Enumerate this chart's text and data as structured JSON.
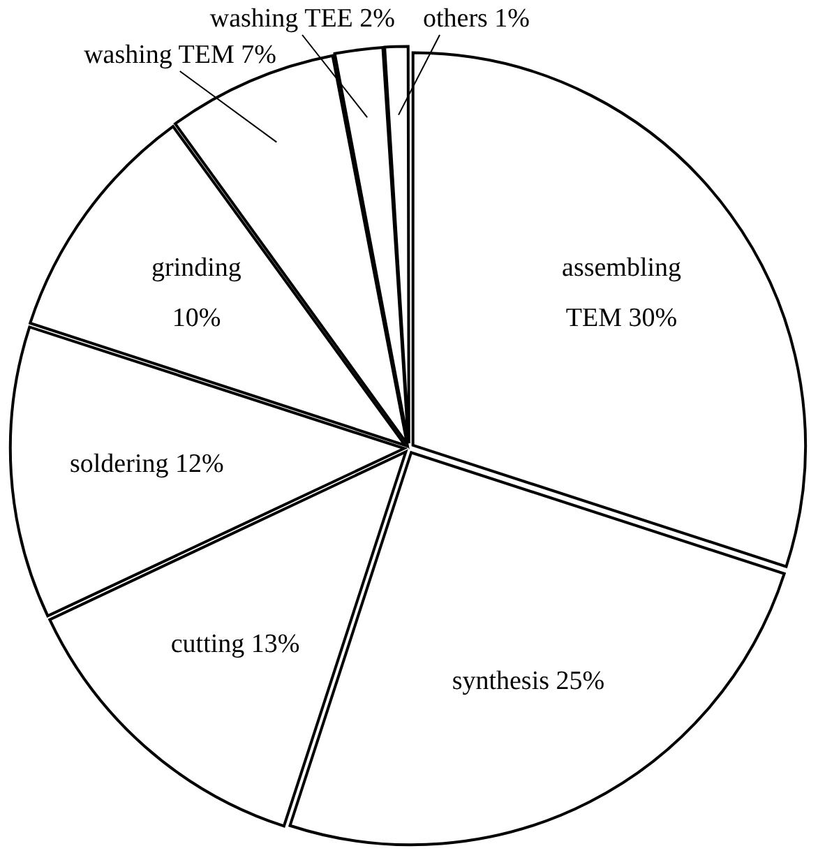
{
  "chart_data": {
    "type": "pie",
    "categories": [
      "assembling TEM",
      "synthesis",
      "cutting",
      "soldering",
      "grinding",
      "washing TEM",
      "washing TEE",
      "others"
    ],
    "values": [
      30,
      25,
      13,
      12,
      10,
      7,
      2,
      1
    ],
    "value_labels": [
      "30%",
      "25%",
      "13%",
      "12%",
      "10%",
      "7%",
      "2%",
      "1%"
    ],
    "colors": [
      "#ffffff",
      "#ffffff",
      "#ffffff",
      "#ffffff",
      "#ffffff",
      "#ffffff",
      "#ffffff",
      "#ffffff"
    ],
    "legend": false
  }
}
